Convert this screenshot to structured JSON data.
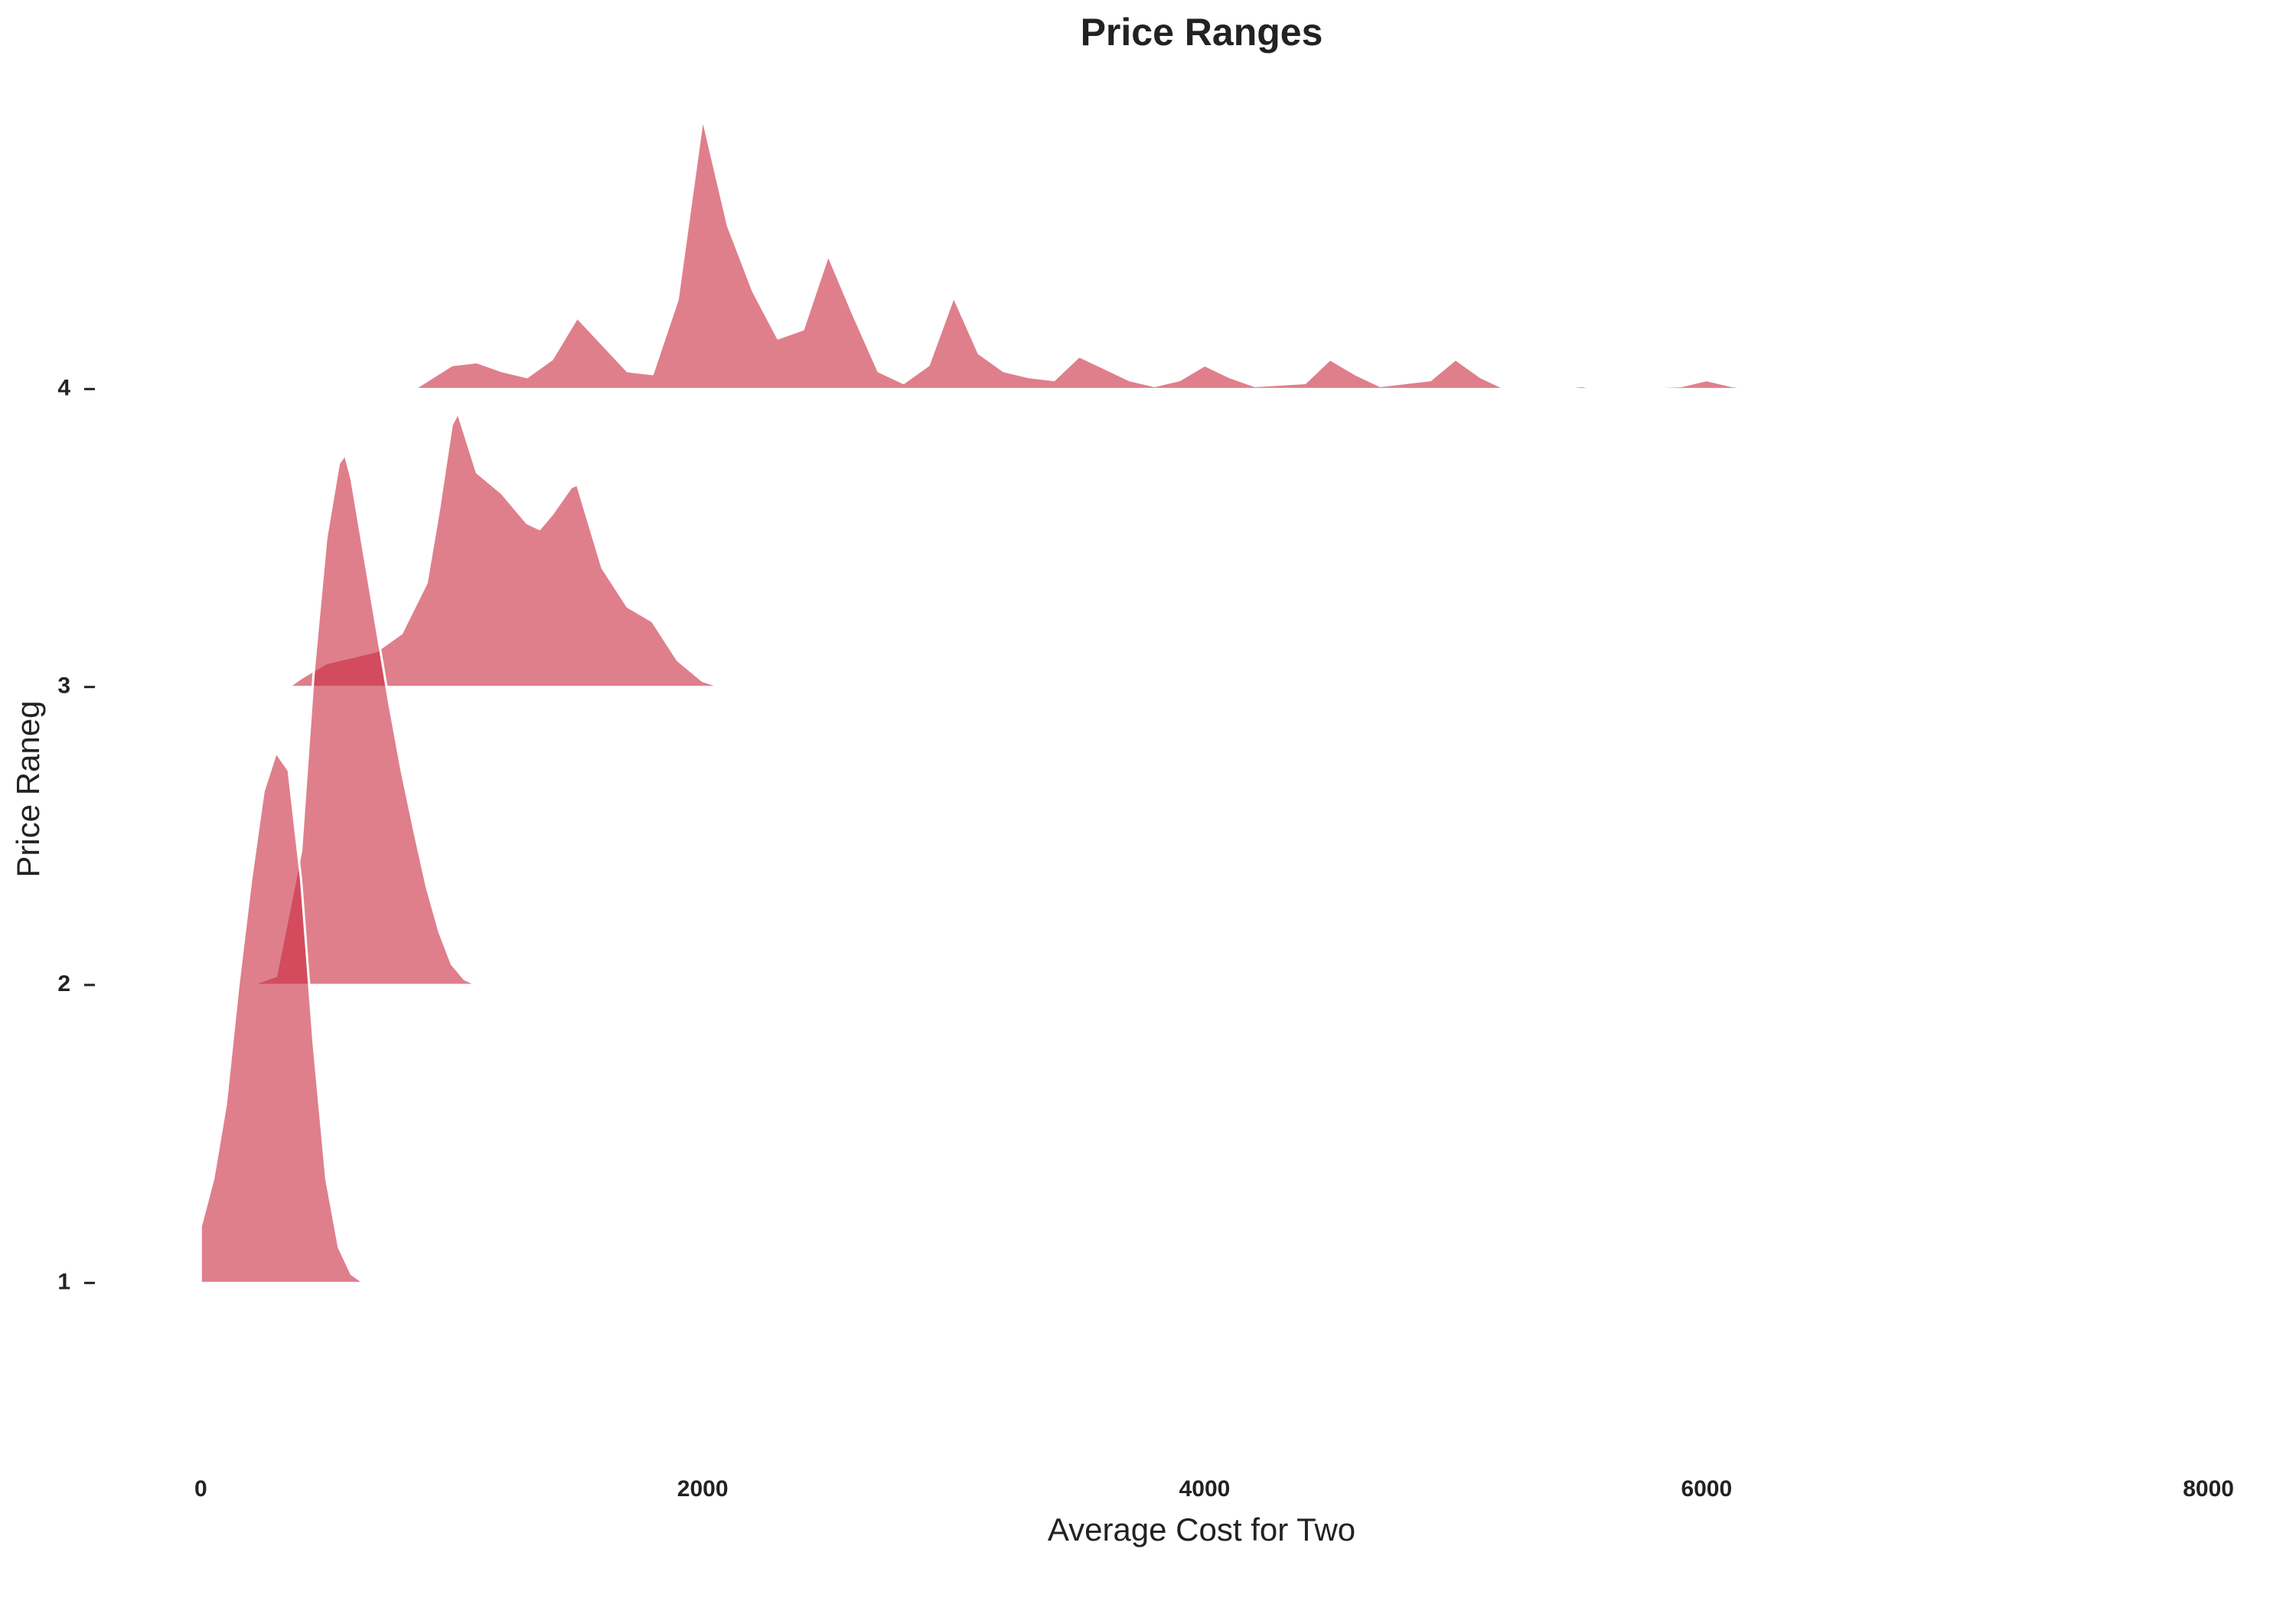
{
  "chart_data": {
    "type": "ridgeline",
    "title": "Price Ranges",
    "x_label": "Average Cost for Two",
    "y_label": "Price Raneg",
    "xlim": [
      -300,
      8300
    ],
    "xticks": [
      0,
      2000,
      4000,
      6000,
      8000
    ],
    "ylim": [
      0.5,
      5
    ],
    "yticks": [
      1,
      2,
      3,
      4
    ],
    "series": [
      {
        "color": "#c92a3f",
        "x": [
          0,
          50,
          100,
          150,
          200,
          250,
          300,
          350,
          400,
          450,
          500,
          550,
          600,
          650
        ],
        "values": [
          0.19,
          0.35,
          0.6,
          1.0,
          1.35,
          1.65,
          1.78,
          1.72,
          1.35,
          0.8,
          0.35,
          0.12,
          0.03,
          0
        ]
      },
      {
        "color": "#c92a3f",
        "x": [
          200,
          300,
          400,
          450,
          500,
          550,
          575,
          600,
          650,
          700,
          750,
          800,
          850,
          900,
          950,
          1000,
          1050,
          1100
        ],
        "values": [
          0,
          0.03,
          0.45,
          1.05,
          1.5,
          1.75,
          1.78,
          1.7,
          1.45,
          1.2,
          0.95,
          0.72,
          0.52,
          0.33,
          0.18,
          0.07,
          0.02,
          0
        ]
      },
      {
        "color": "#c92a3f",
        "x": [
          350,
          400,
          500,
          600,
          700,
          800,
          900,
          950,
          1000,
          1025,
          1100,
          1200,
          1300,
          1350,
          1400,
          1475,
          1500,
          1600,
          1700,
          1800,
          1900,
          2000,
          2075
        ],
        "values": [
          0,
          0.03,
          0.08,
          0.1,
          0.12,
          0.18,
          0.35,
          0.6,
          0.88,
          0.92,
          0.72,
          0.65,
          0.55,
          0.53,
          0.58,
          0.67,
          0.68,
          0.4,
          0.27,
          0.22,
          0.09,
          0.02,
          0
        ]
      },
      {
        "color": "#c92a3f",
        "x": [
          850,
          1000,
          1100,
          1200,
          1300,
          1400,
          1500,
          1600,
          1700,
          1800,
          1900,
          2000,
          2100,
          2200,
          2300,
          2400,
          2500,
          2600,
          2700,
          2800,
          2900,
          3000,
          3100,
          3200,
          3300,
          3400,
          3500,
          3600,
          3700,
          3800,
          3900,
          4000,
          4100,
          4200,
          4400,
          4500,
          4600,
          4700,
          4900,
          5000,
          5100,
          5200,
          5400,
          5500,
          5600,
          5900,
          6000,
          6100,
          6200,
          6500,
          6600,
          7000,
          7100,
          8000
        ],
        "values": [
          0,
          0.08,
          0.09,
          0.06,
          0.04,
          0.1,
          0.24,
          0.15,
          0.06,
          0.05,
          0.3,
          0.91,
          0.55,
          0.33,
          0.17,
          0.2,
          0.45,
          0.25,
          0.06,
          0.02,
          0.08,
          0.31,
          0.12,
          0.06,
          0.04,
          0.03,
          0.11,
          0.07,
          0.03,
          0.01,
          0.03,
          0.08,
          0.04,
          0.01,
          0.02,
          0.1,
          0.05,
          0.01,
          0.03,
          0.1,
          0.04,
          0,
          0,
          0.01,
          0,
          0.01,
          0.03,
          0.01,
          0,
          0.005,
          0,
          0.005,
          0,
          0.005
        ]
      }
    ]
  }
}
